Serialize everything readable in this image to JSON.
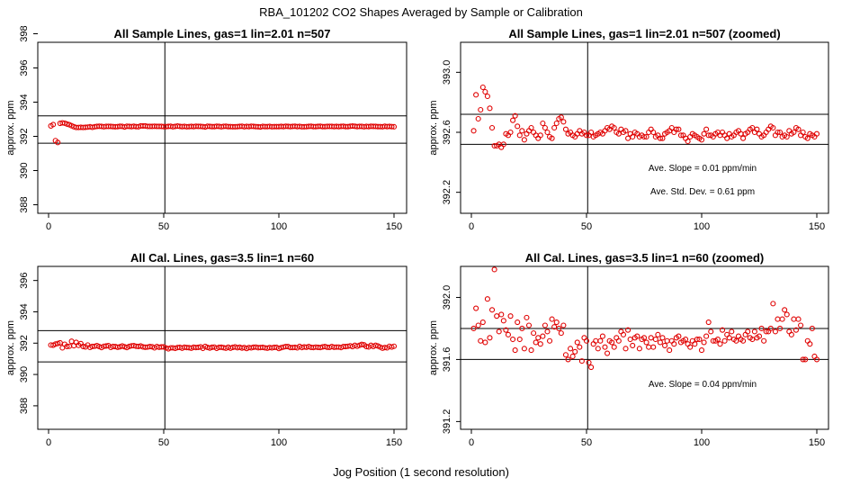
{
  "main_title": "RBA_101202  CO2 Shapes Averaged by Sample or Calibration",
  "x_axis_label": "Jog Position (1 second resolution)",
  "colors": {
    "points": "#e00000",
    "axes": "#000000",
    "background": "#ffffff"
  },
  "chart_data": [
    {
      "type": "scatter",
      "title": "All Sample Lines, gas=1 lin=2.01 n=507",
      "xlabel": "",
      "ylabel": "approx. ppm",
      "xlim": [
        0,
        150
      ],
      "ylim": [
        387.5,
        397.5
      ],
      "x_ticks": [
        "0",
        "50",
        "100",
        "150"
      ],
      "y_ticks": [
        "388",
        "390",
        "392",
        "394",
        "396",
        "398"
      ],
      "hlines": [
        393.2,
        391.6
      ],
      "vline": 50.5,
      "annotations": [],
      "series": [
        {
          "name": "mean shape",
          "values": [
            392.61,
            392.69,
            391.75,
            391.64,
            392.76,
            392.79,
            392.77,
            392.72,
            392.68,
            392.62,
            392.56,
            392.52,
            392.52,
            392.53,
            392.52,
            392.53,
            392.54,
            392.56,
            392.53,
            392.56,
            392.58,
            392.59,
            392.58,
            392.56,
            392.58,
            392.58,
            392.58,
            392.57,
            392.56,
            392.57,
            392.59,
            392.58,
            392.55,
            392.59,
            392.58,
            392.57,
            392.59,
            392.57,
            392.56,
            392.61,
            392.61,
            392.61,
            392.58,
            392.58,
            392.58,
            392.59,
            392.58,
            392.58,
            392.58,
            392.57,
            392.57,
            392.58,
            392.59,
            392.56,
            392.58,
            392.6,
            392.58,
            392.57,
            392.58,
            392.56,
            392.57,
            392.58,
            392.57,
            392.59,
            392.58,
            392.58,
            392.57,
            392.55,
            392.59,
            392.58,
            392.57,
            392.57,
            392.59,
            392.58,
            392.56,
            392.58,
            392.59,
            392.57,
            392.57,
            392.56,
            392.56,
            392.57,
            392.58,
            392.59,
            392.56,
            392.58,
            392.57,
            392.59,
            392.58,
            392.57,
            392.56,
            392.55,
            392.58,
            392.57,
            392.57,
            392.58,
            392.56,
            392.57,
            392.57,
            392.57,
            392.58,
            392.57,
            392.59,
            392.58,
            392.57,
            392.58,
            392.59,
            392.57,
            392.58,
            392.56,
            392.56,
            392.57,
            392.58,
            392.59,
            392.57,
            392.57,
            392.58,
            392.59,
            392.57,
            392.57,
            392.58,
            392.58,
            392.58,
            392.57,
            392.58,
            392.57,
            392.58,
            392.59,
            392.57,
            392.57,
            392.59,
            392.6,
            392.59,
            392.57,
            392.58,
            392.58,
            392.56,
            392.58,
            392.57,
            392.59,
            392.58,
            392.58,
            392.57,
            392.57,
            392.56,
            392.59,
            392.57,
            392.58,
            392.57,
            392.56
          ]
        }
      ]
    },
    {
      "type": "scatter",
      "title": "All Sample Lines, gas=1 lin=2.01 n=507 (zoomed)",
      "xlabel": "",
      "ylabel": "approx. ppm",
      "xlim": [
        0,
        150
      ],
      "ylim": [
        392.06,
        393.2
      ],
      "x_ticks": [
        "0",
        "50",
        "100",
        "150"
      ],
      "y_ticks": [
        "392.2",
        "392.6",
        "393.0"
      ],
      "hlines": [
        392.72,
        392.52
      ],
      "vline": 50.5,
      "annotations": [
        "Ave. Slope =  0.01  ppm/min",
        "Ave. Std. Dev. =  0.61  ppm"
      ],
      "series": [
        {
          "name": "mean shape",
          "values": [
            392.61,
            392.85,
            392.69,
            392.75,
            392.9,
            392.87,
            392.84,
            392.76,
            392.63,
            392.51,
            392.51,
            392.52,
            392.5,
            392.52,
            392.59,
            392.58,
            392.6,
            392.68,
            392.71,
            392.64,
            392.58,
            392.61,
            392.55,
            392.59,
            392.61,
            392.63,
            392.6,
            392.58,
            392.56,
            392.58,
            392.66,
            392.63,
            392.6,
            392.57,
            392.56,
            392.63,
            392.66,
            392.69,
            392.7,
            392.67,
            392.62,
            392.59,
            392.6,
            392.58,
            392.57,
            392.59,
            392.61,
            392.59,
            392.6,
            392.58,
            392.58,
            392.6,
            392.57,
            392.58,
            392.59,
            392.6,
            392.59,
            392.61,
            392.63,
            392.62,
            392.64,
            392.63,
            392.6,
            392.59,
            392.62,
            392.6,
            392.61,
            392.56,
            392.59,
            392.57,
            392.6,
            392.59,
            392.57,
            392.58,
            392.57,
            392.57,
            392.6,
            392.62,
            392.6,
            392.57,
            392.58,
            392.56,
            392.56,
            392.59,
            392.6,
            392.61,
            392.63,
            392.6,
            392.62,
            392.62,
            392.58,
            392.58,
            392.56,
            392.54,
            392.57,
            392.59,
            392.58,
            392.57,
            392.56,
            392.55,
            392.59,
            392.62,
            392.58,
            392.58,
            392.57,
            392.59,
            392.6,
            392.58,
            392.6,
            392.58,
            392.56,
            392.59,
            392.57,
            392.58,
            392.6,
            392.61,
            392.59,
            392.56,
            392.59,
            392.6,
            392.62,
            392.63,
            392.6,
            392.62,
            392.59,
            392.57,
            392.58,
            392.6,
            392.62,
            392.64,
            392.63,
            392.58,
            392.6,
            392.6,
            392.57,
            392.58,
            392.57,
            392.61,
            392.59,
            392.6,
            392.63,
            392.62,
            392.58,
            392.6,
            392.57,
            392.56,
            392.59,
            392.58,
            392.57,
            392.59
          ]
        }
      ]
    },
    {
      "type": "scatter",
      "title": "All Cal. Lines, gas=3.5 lin=1 n=60",
      "xlabel": "",
      "ylabel": "approx. ppm",
      "xlim": [
        0,
        150
      ],
      "ylim": [
        386.5,
        396.9
      ],
      "x_ticks": [
        "0",
        "50",
        "100",
        "150"
      ],
      "y_ticks": [
        "388",
        "390",
        "392",
        "394",
        "396"
      ],
      "hlines": [
        392.8,
        390.8
      ],
      "vline": 50.5,
      "annotations": [],
      "series": [
        {
          "name": "mean shape",
          "values": [
            391.88,
            391.87,
            391.94,
            391.98,
            392.02,
            391.7,
            391.93,
            391.79,
            391.8,
            392.12,
            391.84,
            392.05,
            391.86,
            391.97,
            391.79,
            391.76,
            391.88,
            391.73,
            391.79,
            391.8,
            391.84,
            391.78,
            391.72,
            391.8,
            391.82,
            391.84,
            391.73,
            391.79,
            391.78,
            391.74,
            391.77,
            391.82,
            391.77,
            391.72,
            391.79,
            391.83,
            391.84,
            391.8,
            391.79,
            391.82,
            391.76,
            391.74,
            391.75,
            391.78,
            391.77,
            391.7,
            391.78,
            391.74,
            391.76,
            391.76,
            391.7,
            391.64,
            391.7,
            391.7,
            391.67,
            391.72,
            391.73,
            391.68,
            391.74,
            391.72,
            391.71,
            391.68,
            391.74,
            391.72,
            391.73,
            391.76,
            391.67,
            391.79,
            391.73,
            391.69,
            391.74,
            391.75,
            391.67,
            391.73,
            391.74,
            391.71,
            391.68,
            391.74,
            391.68,
            391.73,
            391.76,
            391.71,
            391.74,
            391.69,
            391.72,
            391.66,
            391.72,
            391.7,
            391.74,
            391.75,
            391.71,
            391.72,
            391.73,
            391.7,
            391.68,
            391.72,
            391.7,
            391.73,
            391.73,
            391.66,
            391.71,
            391.75,
            391.78,
            391.78,
            391.72,
            391.72,
            391.73,
            391.7,
            391.79,
            391.72,
            391.76,
            391.74,
            391.78,
            391.73,
            391.72,
            391.75,
            391.73,
            391.72,
            391.76,
            391.78,
            391.74,
            391.73,
            391.78,
            391.74,
            391.75,
            391.75,
            391.72,
            391.78,
            391.78,
            391.8,
            391.83,
            391.78,
            391.86,
            391.8,
            391.86,
            391.92,
            391.89,
            391.78,
            391.76,
            391.86,
            391.79,
            391.86,
            391.82,
            391.75,
            391.68,
            391.72,
            391.7,
            391.8,
            391.75,
            391.8
          ]
        }
      ]
    },
    {
      "type": "scatter",
      "title": "All Cal. Lines, gas=3.5 lin=1 n=60 (zoomed)",
      "xlabel": "",
      "ylabel": "approx. ppm",
      "xlim": [
        0,
        150
      ],
      "ylim": [
        391.15,
        392.2
      ],
      "x_ticks": [
        "0",
        "50",
        "100",
        "150"
      ],
      "y_ticks": [
        "391.2",
        "391.6",
        "392.0"
      ],
      "hlines": [
        391.8,
        391.6
      ],
      "vline": 50.5,
      "annotations": [
        "Ave. Slope =  0.04  ppm/min"
      ],
      "series": [
        {
          "name": "mean shape",
          "values": [
            391.8,
            391.93,
            391.82,
            391.72,
            391.84,
            391.71,
            391.99,
            391.74,
            391.92,
            392.18,
            391.88,
            391.78,
            391.89,
            391.85,
            391.79,
            391.76,
            391.88,
            391.73,
            391.66,
            391.84,
            391.73,
            391.8,
            391.67,
            391.87,
            391.82,
            391.66,
            391.77,
            391.71,
            391.74,
            391.7,
            391.75,
            391.82,
            391.78,
            391.72,
            391.86,
            391.81,
            391.84,
            391.8,
            391.77,
            391.82,
            391.63,
            391.6,
            391.67,
            391.62,
            391.65,
            391.71,
            391.68,
            391.59,
            391.74,
            391.72,
            391.58,
            391.55,
            391.7,
            391.72,
            391.67,
            391.72,
            391.75,
            391.68,
            391.64,
            391.72,
            391.71,
            391.68,
            391.74,
            391.72,
            391.78,
            391.76,
            391.67,
            391.79,
            391.73,
            391.69,
            391.74,
            391.75,
            391.67,
            391.73,
            391.74,
            391.71,
            391.68,
            391.74,
            391.68,
            391.73,
            391.76,
            391.71,
            391.74,
            391.69,
            391.72,
            391.66,
            391.72,
            391.7,
            391.74,
            391.75,
            391.71,
            391.72,
            391.73,
            391.7,
            391.68,
            391.72,
            391.7,
            391.73,
            391.73,
            391.66,
            391.71,
            391.75,
            391.84,
            391.78,
            391.72,
            391.72,
            391.73,
            391.7,
            391.79,
            391.72,
            391.76,
            391.74,
            391.78,
            391.73,
            391.72,
            391.75,
            391.73,
            391.72,
            391.76,
            391.78,
            391.74,
            391.73,
            391.78,
            391.74,
            391.75,
            391.8,
            391.72,
            391.78,
            391.78,
            391.8,
            391.96,
            391.78,
            391.86,
            391.8,
            391.86,
            391.92,
            391.89,
            391.78,
            391.76,
            391.86,
            391.79,
            391.86,
            391.82,
            391.6,
            391.6,
            391.72,
            391.7,
            391.8,
            391.62,
            391.6
          ]
        }
      ]
    }
  ]
}
